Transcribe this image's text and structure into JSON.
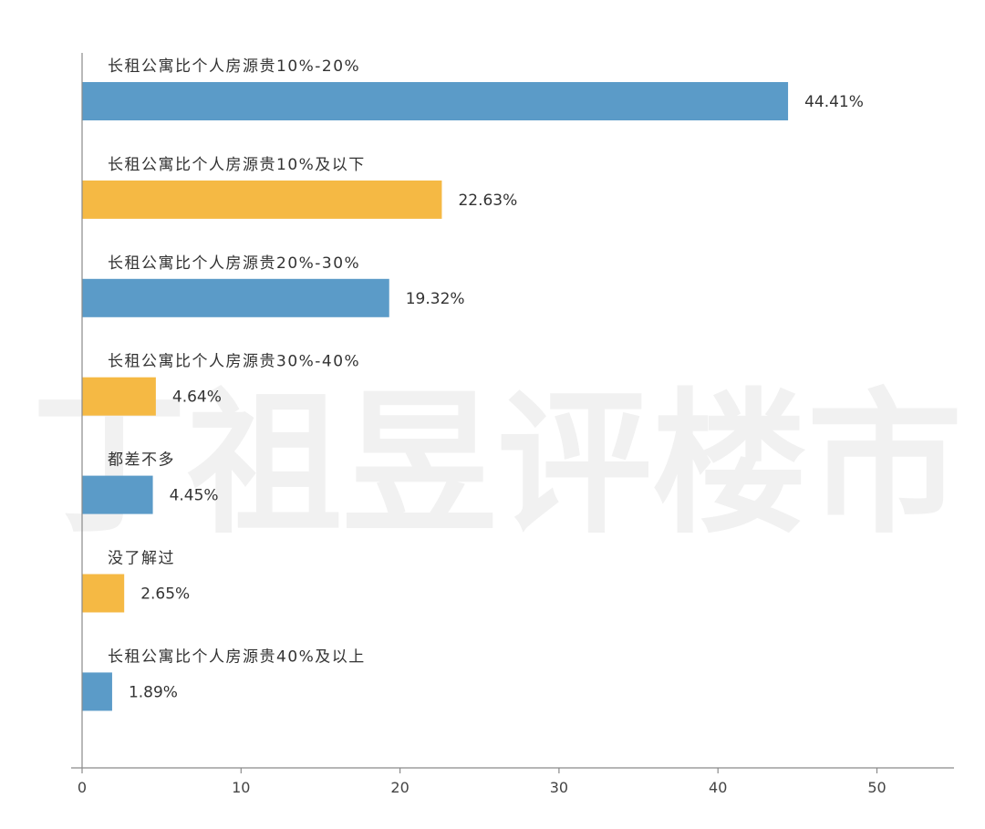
{
  "watermark": "丁祖昱评楼市",
  "chart_data": {
    "type": "bar",
    "orientation": "horizontal",
    "categories": [
      "长租公寓比个人房源贵10%-20%",
      "长租公寓比个人房源贵10%及以下",
      "长租公寓比个人房源贵20%-30%",
      "长租公寓比个人房源贵30%-40%",
      "都差不多",
      "没了解过",
      "长租公寓比个人房源贵40%及以上"
    ],
    "values": [
      44.41,
      22.63,
      19.32,
      4.64,
      4.45,
      2.65,
      1.89
    ],
    "value_labels": [
      "44.41%",
      "22.63%",
      "19.32%",
      "4.64%",
      "4.45%",
      "2.65%",
      "1.89%"
    ],
    "bar_colors": [
      "#5b9bc8",
      "#f5b944",
      "#5b9bc8",
      "#f5b944",
      "#5b9bc8",
      "#f5b944",
      "#5b9bc8"
    ],
    "xlim": [
      0,
      55
    ],
    "xticks": [
      0,
      10,
      20,
      30,
      40,
      50
    ],
    "xtick_labels": [
      "0",
      "10",
      "20",
      "30",
      "40",
      "50"
    ],
    "title": "",
    "xlabel": "",
    "ylabel": "",
    "grid": false,
    "legend": "none"
  }
}
